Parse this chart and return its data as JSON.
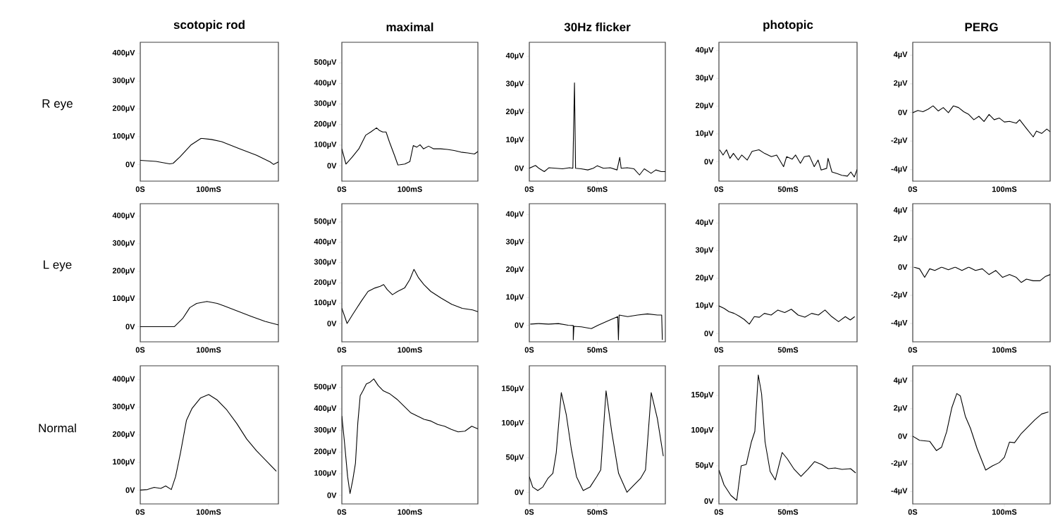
{
  "chart_data": [
    {
      "type": "line",
      "title": "scotopic rod",
      "ylabel": "R eye",
      "x": [
        0,
        23,
        43,
        48,
        58,
        74,
        89,
        104,
        119,
        145,
        170,
        190,
        195,
        202
      ],
      "series": [
        {
          "color": "#000000",
          "values": [
            15,
            11,
            2,
            4,
            27,
            70,
            94,
            90,
            82,
            57,
            33,
            9,
            0,
            9
          ]
        }
      ],
      "xlim": [
        0,
        202
      ],
      "ylim": [
        -60,
        440
      ],
      "xticks": [
        {
          "value": 0,
          "label": "0S"
        },
        {
          "value": 100,
          "label": "100mS"
        }
      ],
      "yticks": [
        {
          "value": 0,
          "label": "0V"
        },
        {
          "value": 100,
          "label": "100µV"
        },
        {
          "value": 200,
          "label": "200µV"
        },
        {
          "value": 300,
          "label": "300µV"
        },
        {
          "value": 400,
          "label": "400µV"
        }
      ]
    },
    {
      "type": "line",
      "title": "maximal",
      "x": [
        0,
        6,
        15,
        25,
        35,
        42.5,
        51,
        55,
        60,
        65,
        70,
        77.5,
        82.5,
        92.5,
        100,
        105,
        110,
        115,
        120,
        127.5,
        135,
        145,
        155,
        165,
        175,
        185,
        195,
        200
      ],
      "series": [
        {
          "color": "#000000",
          "values": [
            82,
            8,
            41,
            82,
            148,
            164,
            184,
            172,
            164,
            164,
            115,
            49,
            3,
            8,
            20,
            98,
            90,
            102,
            82,
            95,
            82,
            82,
            79,
            74,
            66,
            62,
            57,
            69
          ]
        }
      ],
      "xlim": [
        0,
        200
      ],
      "ylim": [
        -75,
        600
      ],
      "xticks": [
        {
          "value": 0,
          "label": "0S"
        },
        {
          "value": 100,
          "label": "100mS"
        }
      ],
      "yticks": [
        {
          "value": 0,
          "label": "0V"
        },
        {
          "value": 100,
          "label": "100µV"
        },
        {
          "value": 200,
          "label": "200µV"
        },
        {
          "value": 300,
          "label": "300µV"
        },
        {
          "value": 400,
          "label": "400µV"
        },
        {
          "value": 500,
          "label": "500µV"
        }
      ]
    },
    {
      "type": "line",
      "title": "30Hz flicker",
      "x": [
        0,
        4.5,
        7,
        11,
        14.5,
        19.5,
        24.5,
        29.5,
        32,
        33.2,
        34,
        38,
        43,
        47,
        50,
        54.5,
        59.5,
        64.5,
        66.5,
        67.5,
        72,
        77,
        81,
        84.5,
        89.5,
        93,
        97,
        100
      ],
      "series": [
        {
          "color": "#000000",
          "values": [
            0,
            1,
            0,
            -1.2,
            0.2,
            0,
            -0.2,
            0.2,
            0,
            30.5,
            0,
            -0.2,
            -0.6,
            0,
            0.9,
            0,
            0.2,
            -0.6,
            3.9,
            0,
            0.2,
            -0.2,
            -2.4,
            -0.2,
            -1.8,
            -0.6,
            -1.2,
            -1.2
          ]
        }
      ],
      "xlim": [
        0,
        100
      ],
      "ylim": [
        -4.6,
        45
      ],
      "xticks": [
        {
          "value": 0,
          "label": "0S"
        },
        {
          "value": 50,
          "label": "50mS"
        }
      ],
      "yticks": [
        {
          "value": 0,
          "label": "0V"
        },
        {
          "value": 10,
          "label": "10µV"
        },
        {
          "value": 20,
          "label": "20µV"
        },
        {
          "value": 30,
          "label": "30µV"
        },
        {
          "value": 40,
          "label": "40µV"
        }
      ]
    },
    {
      "type": "line",
      "title": "photopic",
      "x": [
        0.5,
        3,
        5.5,
        8,
        10.5,
        14,
        16.5,
        20.5,
        24,
        29,
        33,
        38,
        41.8,
        46.8,
        49,
        53,
        55.5,
        59,
        61.8,
        65.5,
        69,
        71.8,
        74,
        78,
        79,
        81.8,
        85.5,
        89,
        93,
        95.5,
        98,
        100
      ],
      "series": [
        {
          "color": "#000000",
          "values": [
            4.3,
            2.4,
            4.3,
            1.2,
            3,
            0.6,
            2.4,
            0.6,
            3.7,
            4.3,
            3,
            1.8,
            2.4,
            -1.8,
            1.8,
            0.9,
            2.4,
            -0.6,
            1.8,
            2.1,
            -1.8,
            0.6,
            -3,
            -2.4,
            1.2,
            -3.7,
            -4.3,
            -4.9,
            -5.2,
            -3.7,
            -5.5,
            -2.8
          ]
        }
      ],
      "xlim": [
        0,
        100
      ],
      "ylim": [
        -7,
        43
      ],
      "xticks": [
        {
          "value": 0,
          "label": "0S"
        },
        {
          "value": 50,
          "label": "50mS"
        }
      ],
      "yticks": [
        {
          "value": 0,
          "label": "0V"
        },
        {
          "value": 10,
          "label": "10µV"
        },
        {
          "value": 20,
          "label": "20µV"
        },
        {
          "value": 30,
          "label": "30µV"
        },
        {
          "value": 40,
          "label": "40µV"
        }
      ]
    },
    {
      "type": "line",
      "title": "PERG",
      "x": [
        0,
        5.6,
        11.1,
        16.7,
        22.2,
        27.8,
        33.3,
        38.9,
        44.4,
        50,
        55.6,
        61.1,
        66.7,
        72.2,
        77.8,
        83.3,
        88.9,
        94.4,
        100,
        105.6,
        113,
        116.7,
        124,
        131.5,
        135,
        140.7,
        146.3,
        150
      ],
      "series": [
        {
          "color": "#000000",
          "values": [
            -0.02,
            0.14,
            0.05,
            0.22,
            0.46,
            0.1,
            0.34,
            -0.02,
            0.46,
            0.34,
            0.05,
            -0.14,
            -0.51,
            -0.27,
            -0.63,
            -0.14,
            -0.51,
            -0.39,
            -0.67,
            -0.63,
            -0.75,
            -0.51,
            -1.11,
            -1.71,
            -1.3,
            -1.47,
            -1.16,
            -1.35
          ]
        }
      ],
      "xlim": [
        0,
        150
      ],
      "ylim": [
        -4.8,
        4.9
      ],
      "xticks": [
        {
          "value": 0,
          "label": "0S"
        },
        {
          "value": 100,
          "label": "100mS"
        }
      ],
      "yticks": [
        {
          "value": -4,
          "label": "-4µV"
        },
        {
          "value": -2,
          "label": "-2µV"
        },
        {
          "value": 0,
          "label": "0V"
        },
        {
          "value": 2,
          "label": "2µV"
        },
        {
          "value": 4,
          "label": "4µV"
        }
      ]
    },
    {
      "type": "line",
      "ylabel": "L eye",
      "x": [
        0,
        50,
        62.5,
        72.5,
        82.5,
        97.5,
        112.5,
        122.5,
        142.5,
        162.5,
        182.5,
        202
      ],
      "series": [
        {
          "color": "#000000",
          "values": [
            0,
            0,
            31,
            69,
            84,
            91,
            84,
            75,
            56,
            37,
            19,
            6
          ]
        }
      ],
      "xlim": [
        0,
        202
      ],
      "ylim": [
        -55,
        445
      ],
      "xticks": [
        {
          "value": 0,
          "label": "0S"
        },
        {
          "value": 100,
          "label": "100mS"
        }
      ],
      "yticks": [
        {
          "value": 0,
          "label": "0V"
        },
        {
          "value": 100,
          "label": "100µV"
        },
        {
          "value": 200,
          "label": "200µV"
        },
        {
          "value": 300,
          "label": "300µV"
        },
        {
          "value": 400,
          "label": "400µV"
        }
      ]
    },
    {
      "type": "line",
      "x": [
        0,
        7.7,
        15.4,
        28.2,
        38.5,
        48.7,
        56.4,
        61.5,
        66.7,
        74.4,
        82,
        92.3,
        100,
        106,
        112.8,
        120.5,
        130.8,
        146,
        161.5,
        177,
        192.3,
        200
      ],
      "series": [
        {
          "color": "#000000",
          "values": [
            75,
            0,
            42,
            108,
            158,
            175,
            183,
            192,
            167,
            142,
            158,
            175,
            217,
            267,
            225,
            192,
            158,
            125,
            95,
            75,
            67,
            58
          ]
        }
      ],
      "xlim": [
        0,
        200
      ],
      "ylim": [
        -90,
        590
      ],
      "xticks": [
        {
          "value": 0,
          "label": "0S"
        },
        {
          "value": 100,
          "label": "100mS"
        }
      ],
      "yticks": [
        {
          "value": 0,
          "label": "0V"
        },
        {
          "value": 100,
          "label": "100µV"
        },
        {
          "value": 200,
          "label": "200µV"
        },
        {
          "value": 300,
          "label": "300µV"
        },
        {
          "value": 400,
          "label": "400µV"
        },
        {
          "value": 500,
          "label": "500µV"
        }
      ]
    },
    {
      "type": "line",
      "x": [
        0.7,
        6.8,
        14.1,
        21.4,
        28.6,
        32.3,
        32.3,
        32.8,
        38.3,
        45.6,
        50.5,
        57.8,
        65.0,
        65.5,
        66.0,
        72.3,
        79.6,
        86.9,
        94.2,
        97.3,
        97.8
      ],
      "series": [
        {
          "color": "#000000",
          "values": [
            0.4,
            0.6,
            0.4,
            0.6,
            0,
            -0.1,
            -5.3,
            -0.4,
            -0.6,
            -1.2,
            0,
            1.6,
            3.1,
            -5.3,
            3.7,
            3.1,
            3.7,
            4.1,
            3.7,
            3.7,
            -5.3
          ]
        }
      ],
      "xlim": [
        0,
        100
      ],
      "ylim": [
        -6,
        44
      ],
      "xticks": [
        {
          "value": 0,
          "label": "0S"
        },
        {
          "value": 50,
          "label": "50mS"
        }
      ],
      "yticks": [
        {
          "value": 0,
          "label": "0V"
        },
        {
          "value": 10,
          "label": "10µV"
        },
        {
          "value": 20,
          "label": "20µV"
        },
        {
          "value": 30,
          "label": "30µV"
        },
        {
          "value": 40,
          "label": "40µV"
        }
      ]
    },
    {
      "type": "line",
      "x": [
        0,
        3.7,
        7.3,
        11,
        14.6,
        18.3,
        22,
        25.6,
        29.3,
        32.9,
        37.8,
        42.7,
        47.6,
        52.4,
        57.3,
        62.2,
        67.1,
        72,
        76.8,
        81.7,
        86.6,
        91.5,
        95.1,
        98.3
      ],
      "series": [
        {
          "color": "#000000",
          "values": [
            10,
            9.1,
            7.9,
            7.3,
            6.3,
            5.1,
            3.4,
            6.1,
            5.9,
            7.3,
            6.7,
            8.5,
            7.6,
            8.8,
            6.7,
            5.9,
            7.3,
            6.7,
            8.5,
            6.1,
            4.3,
            6.1,
            4.9,
            6.1
          ]
        }
      ],
      "xlim": [
        0,
        100
      ],
      "ylim": [
        -3,
        47
      ],
      "xticks": [
        {
          "value": 0,
          "label": "0S"
        },
        {
          "value": 50,
          "label": "50mS"
        }
      ],
      "yticks": [
        {
          "value": 0,
          "label": "0V"
        },
        {
          "value": 10,
          "label": "10µV"
        },
        {
          "value": 20,
          "label": "20µV"
        },
        {
          "value": 30,
          "label": "30µV"
        },
        {
          "value": 40,
          "label": "40µV"
        }
      ]
    },
    {
      "type": "line",
      "x": [
        1.1,
        7.4,
        13,
        18.5,
        24.1,
        31.5,
        38.9,
        46.3,
        53.7,
        61.1,
        68.5,
        75.9,
        83.3,
        90.7,
        98.1,
        105.6,
        113,
        118.5,
        124.1,
        131.5,
        138.9,
        144.4,
        150
      ],
      "series": [
        {
          "color": "#000000",
          "values": [
            0,
            -0.12,
            -0.73,
            -0.12,
            -0.24,
            0,
            -0.19,
            0,
            -0.24,
            0,
            -0.24,
            -0.12,
            -0.53,
            -0.24,
            -0.73,
            -0.53,
            -0.73,
            -1.09,
            -0.85,
            -0.97,
            -0.97,
            -0.68,
            -0.53
          ]
        }
      ],
      "xlim": [
        0,
        150
      ],
      "ylim": [
        -5.3,
        4.5
      ],
      "xticks": [
        {
          "value": 0,
          "label": "0S"
        },
        {
          "value": 100,
          "label": "100mS"
        }
      ],
      "yticks": [
        {
          "value": -4,
          "label": "-4µV"
        },
        {
          "value": -2,
          "label": "-2µV"
        },
        {
          "value": 0,
          "label": "0V"
        },
        {
          "value": 2,
          "label": "2µV"
        },
        {
          "value": 4,
          "label": "4µV"
        }
      ]
    },
    {
      "type": "line",
      "ylabel": "Normal",
      "x": [
        0,
        10.6,
        20.3,
        30,
        37.2,
        45.4,
        51.7,
        58.9,
        67.6,
        75.8,
        87.9,
        100,
        112.1,
        126.6,
        141.1,
        155.6,
        170,
        184.5,
        199
      ],
      "series": [
        {
          "color": "#000000",
          "values": [
            0,
            2,
            10,
            6,
            15,
            2,
            49,
            136,
            253,
            296,
            333,
            346,
            327,
            290,
            241,
            185,
            142,
            105,
            68
          ]
        }
      ],
      "xlim": [
        0,
        202
      ],
      "ylim": [
        -50,
        450
      ],
      "xticks": [
        {
          "value": 0,
          "label": "0S"
        },
        {
          "value": 100,
          "label": "100mS"
        }
      ],
      "yticks": [
        {
          "value": 0,
          "label": "0V"
        },
        {
          "value": 100,
          "label": "100µV"
        },
        {
          "value": 200,
          "label": "200µV"
        },
        {
          "value": 300,
          "label": "300µV"
        },
        {
          "value": 400,
          "label": "400µV"
        }
      ]
    },
    {
      "type": "line",
      "x": [
        0,
        3.5,
        8.5,
        12,
        16,
        20,
        23.5,
        27,
        31,
        36,
        41,
        47,
        53.5,
        61,
        71,
        81,
        91,
        101,
        111,
        121,
        131,
        141,
        151,
        161,
        171,
        181,
        191,
        200
      ],
      "series": [
        {
          "color": "#000000",
          "values": [
            367,
            258,
            86,
            8,
            70,
            148,
            336,
            461,
            484,
            516,
            523,
            539,
            508,
            484,
            469,
            445,
            414,
            383,
            367,
            352,
            344,
            328,
            320,
            305,
            294,
            297,
            320,
            308
          ]
        }
      ],
      "xlim": [
        0,
        200
      ],
      "ylim": [
        -40,
        600
      ],
      "xticks": [
        {
          "value": 0,
          "label": "0S"
        },
        {
          "value": 100,
          "label": "100mS"
        }
      ],
      "yticks": [
        {
          "value": 0,
          "label": "0V"
        },
        {
          "value": 100,
          "label": "100µV"
        },
        {
          "value": 200,
          "label": "200µV"
        },
        {
          "value": 300,
          "label": "300µV"
        },
        {
          "value": 400,
          "label": "400µV"
        },
        {
          "value": 500,
          "label": "500µV"
        }
      ]
    },
    {
      "type": "line",
      "x": [
        0,
        2.5,
        6.2,
        9.9,
        13.6,
        17.3,
        19.8,
        23.5,
        27.2,
        30.9,
        34.7,
        39.6,
        44.6,
        49.5,
        52.5,
        56.4,
        60.6,
        65.6,
        71.8,
        76.7,
        81.7,
        85.4,
        89.6,
        94.1,
        98.5
      ],
      "series": [
        {
          "color": "#000000",
          "values": [
            22.5,
            7.5,
            2.5,
            7.5,
            20,
            27.5,
            57.5,
            145,
            112.5,
            62.5,
            22.5,
            2.5,
            7.5,
            22.5,
            32.5,
            147.5,
            87.5,
            27.5,
            0,
            10,
            20,
            32.5,
            145,
            107.5,
            52.5
          ]
        }
      ],
      "xlim": [
        0,
        100
      ],
      "ylim": [
        -17,
        184
      ],
      "xticks": [
        {
          "value": 0,
          "label": "0S"
        },
        {
          "value": 50,
          "label": "50mS"
        }
      ],
      "yticks": [
        {
          "value": 0,
          "label": "0V"
        },
        {
          "value": 50,
          "label": "50µV"
        },
        {
          "value": 100,
          "label": "100µV"
        },
        {
          "value": 150,
          "label": "150µV"
        }
      ]
    },
    {
      "type": "line",
      "x": [
        0,
        3.7,
        8.7,
        12.9,
        16.1,
        19.8,
        23.5,
        26,
        28.5,
        30.9,
        33.4,
        37.1,
        40.8,
        45.8,
        49.5,
        54.5,
        59.4,
        64.4,
        69.3,
        74.3,
        79.2,
        84.2,
        89.1,
        95.3,
        99
      ],
      "series": [
        {
          "color": "#000000",
          "values": [
            44,
            23,
            8,
            1,
            50,
            52,
            84,
            99,
            179,
            152,
            84,
            42,
            30,
            69,
            60,
            45,
            35,
            45,
            56,
            52,
            46,
            47,
            45,
            46,
            40
          ]
        }
      ],
      "xlim": [
        0,
        100
      ],
      "ylim": [
        -4,
        192
      ],
      "xticks": [
        {
          "value": 0,
          "label": "0S"
        },
        {
          "value": 50,
          "label": "50mS"
        }
      ],
      "yticks": [
        {
          "value": 0,
          "label": "0V"
        },
        {
          "value": 50,
          "label": "50µV"
        },
        {
          "value": 100,
          "label": "100µV"
        },
        {
          "value": 150,
          "label": "150µV"
        }
      ]
    },
    {
      "type": "line",
      "x": [
        0,
        7.4,
        18.5,
        25.9,
        31.5,
        37,
        42.6,
        48.1,
        51.9,
        57.4,
        63,
        70.4,
        79.6,
        87,
        94.4,
        100,
        105.6,
        111.1,
        118.5,
        125.9,
        133.3,
        140.7,
        148.1
      ],
      "series": [
        {
          "color": "#000000",
          "values": [
            0,
            -0.3,
            -0.37,
            -1.04,
            -0.79,
            0.32,
            2.05,
            3.09,
            2.92,
            1.44,
            0.57,
            -0.92,
            -2.45,
            -2.15,
            -1.91,
            -1.53,
            -0.42,
            -0.47,
            0.2,
            0.69,
            1.19,
            1.61,
            1.76
          ]
        }
      ],
      "xlim": [
        0,
        150
      ],
      "ylim": [
        -4.9,
        5.1
      ],
      "xticks": [
        {
          "value": 0,
          "label": "0S"
        },
        {
          "value": 100,
          "label": "100mS"
        }
      ],
      "yticks": [
        {
          "value": -4,
          "label": "-4µV"
        },
        {
          "value": -2,
          "label": "-2µV"
        },
        {
          "value": 0,
          "label": "0V"
        },
        {
          "value": 2,
          "label": "2µV"
        },
        {
          "value": 4,
          "label": "4µV"
        }
      ]
    }
  ]
}
